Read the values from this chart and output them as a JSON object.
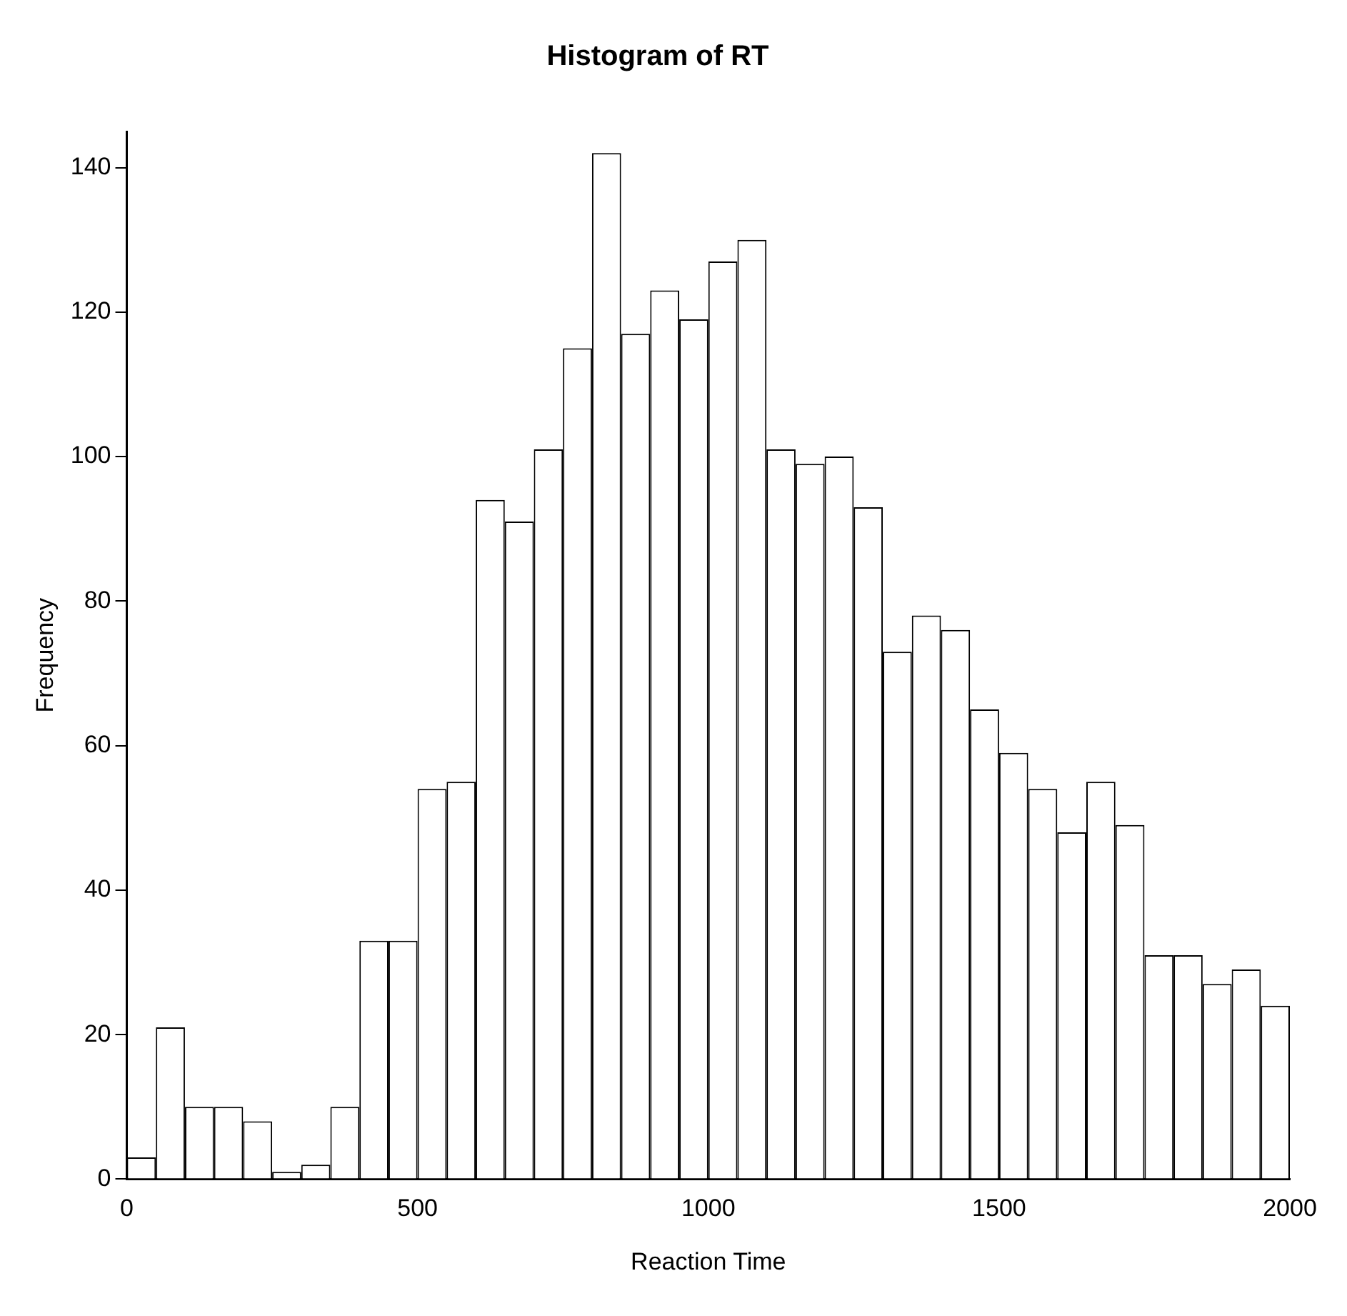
{
  "chart_data": {
    "type": "histogram",
    "title": "Histogram of RT",
    "xlabel": "Reaction Time",
    "ylabel": "Frequency",
    "bins": [
      0,
      50,
      100,
      150,
      200,
      250,
      300,
      350,
      400,
      450,
      500,
      550,
      600,
      650,
      700,
      750,
      800,
      850,
      900,
      950,
      1000,
      1050,
      1100,
      1150,
      1200,
      1250,
      1300,
      1350,
      1400,
      1450,
      1500,
      1550,
      1600,
      1650,
      1700,
      1750,
      1800,
      1850,
      1900,
      1950,
      2000
    ],
    "values": [
      3,
      21,
      10,
      10,
      8,
      1,
      2,
      10,
      33,
      33,
      54,
      55,
      94,
      91,
      101,
      115,
      142,
      117,
      123,
      119,
      127,
      130,
      101,
      99,
      100,
      93,
      73,
      78,
      76,
      65,
      59,
      54,
      48,
      55,
      49,
      31,
      31,
      27,
      29,
      24
    ],
    "color": "#ffffff",
    "xlim": [
      0,
      2000
    ],
    "xticks": [
      0,
      500,
      1000,
      1500,
      2000
    ],
    "ylim": [
      0,
      145
    ],
    "yticks": [
      0,
      20,
      40,
      60,
      80,
      100,
      120,
      140
    ],
    "grid": false,
    "legend": false
  }
}
